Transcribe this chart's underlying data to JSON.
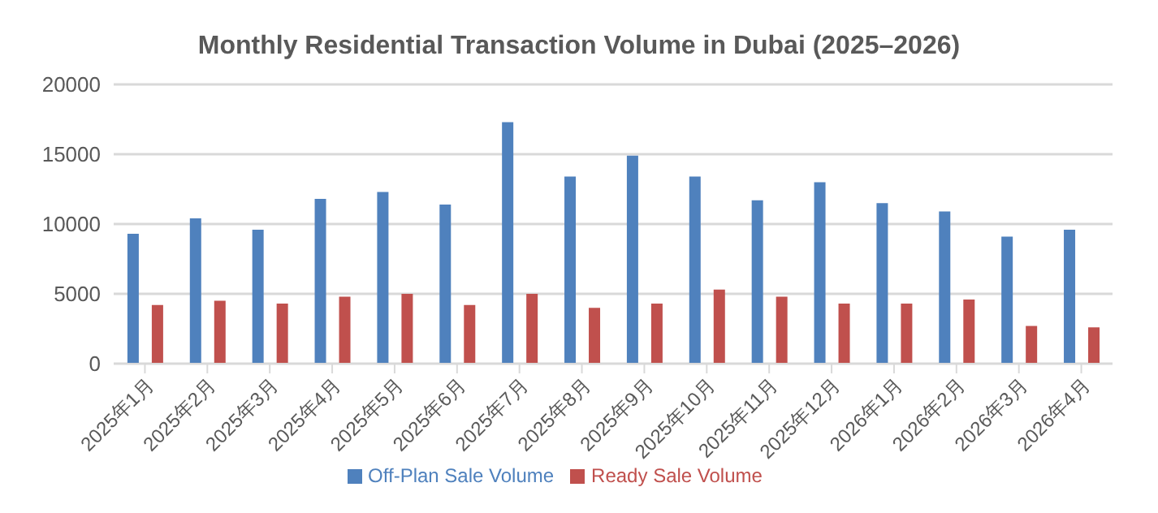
{
  "chart_data": {
    "type": "bar",
    "title": "Monthly Residential Transaction Volume in Dubai (2025–2026)",
    "categories": [
      "2025年1月",
      "2025年2月",
      "2025年3月",
      "2025年4月",
      "2025年5月",
      "2025年6月",
      "2025年7月",
      "2025年8月",
      "2025年9月",
      "2025年10月",
      "2025年11月",
      "2025年12月",
      "2026年1月",
      "2026年2月",
      "2026年3月",
      "2026年4月"
    ],
    "series": [
      {
        "name": "Off-Plan Sale Volume",
        "color": "#4f81bd",
        "values": [
          9300,
          10400,
          9600,
          11800,
          12300,
          11400,
          17300,
          13400,
          14900,
          13400,
          11700,
          13000,
          11500,
          10900,
          9100,
          9600
        ]
      },
      {
        "name": "Ready Sale Volume",
        "color": "#c0504d",
        "values": [
          4200,
          4500,
          4300,
          4800,
          5000,
          4200,
          5000,
          4000,
          4300,
          5300,
          4800,
          4300,
          4300,
          4600,
          2700,
          2600
        ]
      }
    ],
    "ylim": [
      0,
      20000
    ],
    "yticks": [
      0,
      5000,
      10000,
      15000,
      20000
    ],
    "grid": "y",
    "legend": "bottom"
  }
}
